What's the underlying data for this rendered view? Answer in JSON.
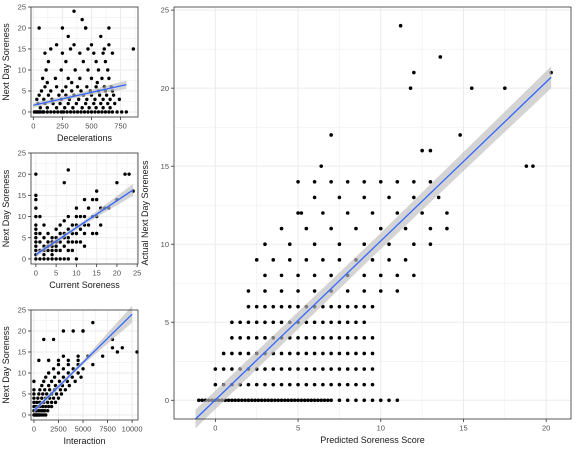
{
  "colors": {
    "points": "#000000",
    "fit_line": "#3366ff",
    "ci_band": "#bdbdbd",
    "grid": "#ebebeb",
    "panel_border": "#333333"
  },
  "chart_data": [
    {
      "type": "scatter",
      "xlabel": "Decelerations",
      "ylabel": "Next Day Soreness",
      "xlim": [
        -20,
        900
      ],
      "ylim": [
        -1.2,
        25
      ],
      "xticks": [
        0,
        250,
        500,
        750
      ],
      "yticks": [
        0,
        5,
        10,
        15,
        20,
        25
      ],
      "grid": true,
      "fit": {
        "method": "linear",
        "x": [
          0,
          800
        ],
        "y": [
          1.6,
          6.5
        ],
        "ci_halfwidth": [
          0.6,
          1.0
        ]
      },
      "x": [
        10,
        20,
        30,
        40,
        50,
        60,
        80,
        90,
        120,
        150,
        180,
        210,
        240,
        260,
        290,
        320,
        350,
        380,
        410,
        440,
        470,
        500,
        530,
        560,
        590,
        620,
        650,
        680,
        720,
        760,
        800,
        60,
        120,
        200,
        270,
        340,
        420,
        480,
        540,
        600,
        660,
        40,
        100,
        170,
        230,
        300,
        370,
        450,
        520,
        580,
        640,
        700,
        30,
        90,
        160,
        240,
        310,
        390,
        460,
        530,
        600,
        660,
        740,
        50,
        130,
        220,
        280,
        350,
        430,
        500,
        570,
        630,
        690,
        70,
        150,
        250,
        330,
        410,
        490,
        560,
        620,
        680,
        100,
        200,
        280,
        380,
        460,
        540,
        610,
        670,
        80,
        190,
        300,
        400,
        500,
        590,
        650,
        110,
        240,
        360,
        470,
        560,
        640,
        130,
        280,
        430,
        540,
        620,
        100,
        250,
        400,
        520,
        600,
        680,
        150,
        320,
        470,
        610,
        200,
        350,
        500,
        650,
        300,
        580,
        450,
        860,
        350,
        420,
        50,
        250,
        450,
        650,
        120,
        330,
        550
      ],
      "y": [
        0,
        0,
        0,
        0,
        0,
        0,
        0,
        0,
        0,
        0,
        0,
        0,
        0,
        0,
        0,
        0,
        0,
        0,
        0,
        0,
        0,
        0,
        0,
        0,
        0,
        0,
        0,
        0,
        0,
        0,
        0,
        1,
        1,
        1,
        1,
        1,
        1,
        1,
        1,
        1,
        1,
        2,
        2,
        2,
        2,
        2,
        2,
        2,
        2,
        2,
        2,
        2,
        3,
        3,
        3,
        3,
        3,
        3,
        3,
        3,
        3,
        3,
        3,
        4,
        4,
        4,
        4,
        4,
        4,
        4,
        4,
        4,
        4,
        5,
        5,
        5,
        5,
        5,
        5,
        5,
        5,
        5,
        6,
        6,
        6,
        6,
        6,
        6,
        6,
        6,
        8,
        8,
        8,
        8,
        8,
        8,
        8,
        10,
        10,
        10,
        10,
        10,
        10,
        12,
        12,
        12,
        12,
        12,
        14,
        14,
        14,
        14,
        14,
        14,
        15,
        15,
        15,
        15,
        16,
        16,
        16,
        16,
        18,
        18,
        20,
        15,
        24,
        22,
        20,
        20,
        20,
        20,
        7,
        7,
        7
      ]
    },
    {
      "type": "scatter",
      "xlabel": "Current Soreness",
      "ylabel": "Next Day Soreness",
      "xlim": [
        -1.2,
        25.2
      ],
      "ylim": [
        -1.2,
        25
      ],
      "xticks": [
        0,
        5,
        10,
        15,
        20,
        25
      ],
      "yticks": [
        0,
        5,
        10,
        15,
        20,
        25
      ],
      "grid": true,
      "fit": {
        "method": "linear",
        "x": [
          0,
          24
        ],
        "y": [
          1.0,
          16.3
        ],
        "ci_halfwidth": [
          0.6,
          1.4
        ]
      },
      "x": [
        0,
        0,
        0,
        0,
        0,
        0,
        0,
        0,
        0,
        0,
        0,
        0,
        0,
        0,
        1,
        1,
        1,
        1,
        1,
        2,
        2,
        2,
        2,
        2,
        2,
        3,
        3,
        3,
        3,
        3,
        4,
        4,
        4,
        4,
        4,
        4,
        5,
        5,
        5,
        5,
        5,
        5,
        6,
        6,
        6,
        6,
        6,
        7,
        7,
        7,
        7,
        7,
        8,
        8,
        8,
        8,
        8,
        8,
        9,
        9,
        9,
        9,
        10,
        10,
        10,
        10,
        10,
        10,
        11,
        11,
        11,
        12,
        12,
        12,
        12,
        12,
        13,
        13,
        14,
        14,
        14,
        15,
        15,
        15,
        15,
        16,
        16,
        17,
        18,
        20,
        20,
        24,
        7,
        8,
        22,
        23
      ],
      "y": [
        0,
        1,
        2,
        3,
        4,
        5,
        6,
        7,
        8,
        10,
        12,
        14,
        15,
        20,
        0,
        2,
        4,
        6,
        10,
        0,
        1,
        2,
        3,
        5,
        8,
        0,
        2,
        3,
        4,
        6,
        0,
        1,
        2,
        3,
        4,
        5,
        0,
        2,
        3,
        4,
        5,
        7,
        0,
        2,
        4,
        6,
        8,
        0,
        3,
        5,
        6,
        9,
        0,
        2,
        4,
        5,
        7,
        10,
        2,
        4,
        6,
        8,
        0,
        4,
        6,
        8,
        10,
        12,
        4,
        7,
        10,
        3,
        6,
        8,
        10,
        14,
        8,
        12,
        6,
        10,
        14,
        6,
        10,
        14,
        16,
        8,
        12,
        12,
        12,
        14,
        18,
        16,
        18,
        21,
        20,
        20
      ]
    },
    {
      "type": "scatter",
      "xlabel": "Interaction",
      "ylabel": "Next Day Soreness",
      "xlim": [
        -300,
        10600
      ],
      "ylim": [
        -1.2,
        25
      ],
      "xticks": [
        0,
        2500,
        5000,
        7500,
        10000
      ],
      "yticks": [
        0,
        5,
        10,
        15,
        20,
        25
      ],
      "grid": true,
      "fit": {
        "method": "linear",
        "x": [
          0,
          10000
        ],
        "y": [
          1.0,
          24.0
        ],
        "ci_halfwidth": [
          0.6,
          2.0
        ]
      },
      "x": [
        0,
        0,
        0,
        0,
        0,
        0,
        0,
        0,
        100,
        200,
        300,
        400,
        500,
        600,
        800,
        1000,
        1200,
        150,
        300,
        500,
        700,
        900,
        1100,
        1400,
        200,
        400,
        600,
        900,
        1200,
        1500,
        1800,
        300,
        600,
        1000,
        1400,
        1800,
        2200,
        400,
        800,
        1200,
        1600,
        2000,
        2500,
        500,
        900,
        1300,
        1800,
        2300,
        2800,
        600,
        1100,
        1600,
        2100,
        2700,
        3200,
        800,
        1500,
        2200,
        2900,
        3600,
        1000,
        1800,
        2600,
        3400,
        4200,
        1200,
        2100,
        3000,
        3900,
        4800,
        1500,
        2500,
        3500,
        4500,
        2000,
        3000,
        4000,
        5000,
        2500,
        3500,
        4500,
        6000,
        3000,
        4500,
        5500,
        7000,
        8000,
        9000,
        1000,
        2000,
        3000,
        4000,
        5000,
        8500,
        10500,
        6000,
        8000,
        500,
        1500,
        2500,
        3500,
        4500,
        5000
      ],
      "y": [
        0,
        1,
        2,
        3,
        4,
        5,
        6,
        8,
        0,
        0,
        0,
        0,
        0,
        0,
        0,
        0,
        0,
        1,
        1,
        1,
        1,
        1,
        1,
        1,
        2,
        2,
        2,
        2,
        2,
        2,
        2,
        3,
        3,
        3,
        3,
        3,
        3,
        4,
        4,
        4,
        4,
        4,
        4,
        5,
        5,
        5,
        5,
        5,
        5,
        6,
        6,
        6,
        6,
        6,
        6,
        7,
        7,
        7,
        7,
        7,
        8,
        8,
        8,
        8,
        8,
        9,
        9,
        9,
        9,
        9,
        10,
        10,
        10,
        10,
        11,
        11,
        11,
        11,
        12,
        12,
        12,
        12,
        14,
        14,
        14,
        14,
        16,
        16,
        18,
        18,
        20,
        20,
        20,
        15,
        15,
        22,
        18,
        13,
        13,
        13,
        13,
        13,
        20
      ]
    },
    {
      "type": "scatter",
      "xlabel": "Predicted Soreness Score",
      "ylabel": "Actual Next Day Soreness",
      "xlim": [
        -2.5,
        21.5
      ],
      "ylim": [
        -1.2,
        25.2
      ],
      "xticks": [
        0,
        5,
        10,
        15,
        20
      ],
      "yticks": [
        0,
        5,
        10,
        15,
        20,
        25
      ],
      "grid": true,
      "fit": {
        "method": "linear",
        "x": [
          -1.2,
          20.3
        ],
        "y": [
          -1.2,
          20.7
        ],
        "ci_halfwidth": [
          0.6,
          0.7
        ]
      },
      "x": [
        -1.0,
        -0.8,
        -0.6,
        -0.4,
        -0.2,
        0.0,
        0.2,
        0.4,
        0.6,
        0.8,
        1.0,
        1.2,
        1.4,
        1.6,
        1.8,
        2.0,
        2.2,
        2.4,
        2.6,
        2.8,
        3.0,
        3.2,
        3.4,
        3.6,
        3.8,
        4.0,
        4.2,
        4.4,
        4.6,
        4.8,
        5.0,
        5.2,
        5.4,
        5.6,
        5.8,
        6.0,
        6.2,
        6.4,
        6.6,
        6.8,
        7.0,
        7.5,
        8.0,
        8.5,
        9.0,
        9.5,
        10.0,
        10.5,
        11.0,
        0.0,
        0.5,
        1.0,
        1.5,
        2.0,
        2.5,
        3.0,
        3.5,
        4.0,
        4.5,
        5.0,
        5.5,
        6.0,
        6.5,
        7.0,
        7.5,
        8.0,
        8.5,
        9.0,
        9.5,
        0.0,
        0.5,
        1.0,
        1.5,
        2.0,
        2.5,
        3.0,
        3.5,
        4.0,
        4.5,
        5.0,
        5.5,
        6.0,
        6.5,
        7.0,
        7.5,
        8.0,
        8.5,
        9.0,
        9.5,
        0.5,
        1.0,
        1.5,
        2.0,
        2.5,
        3.0,
        3.5,
        4.0,
        4.5,
        5.0,
        5.5,
        6.0,
        6.5,
        7.0,
        7.5,
        8.0,
        8.5,
        9.0,
        9.5,
        1.0,
        1.5,
        2.0,
        2.5,
        3.0,
        3.5,
        4.0,
        4.5,
        5.0,
        5.5,
        6.0,
        6.5,
        7.0,
        7.5,
        8.0,
        8.5,
        9.0,
        9.5,
        1.0,
        1.5,
        2.0,
        2.5,
        3.0,
        3.5,
        4.0,
        4.5,
        5.0,
        5.5,
        6.0,
        6.5,
        7.0,
        7.5,
        8.0,
        8.5,
        9.0,
        2.0,
        2.5,
        3.0,
        3.5,
        4.0,
        4.5,
        5.0,
        5.5,
        6.0,
        6.5,
        7.0,
        7.5,
        8.0,
        8.5,
        9.0,
        9.5,
        2.0,
        3.0,
        4.0,
        5.0,
        6.0,
        7.0,
        8.0,
        9.0,
        10.0,
        11.0,
        3.0,
        4.0,
        5.0,
        6.0,
        7.0,
        8.0,
        9.0,
        10.0,
        11.0,
        12.0,
        2.5,
        3.5,
        4.5,
        5.5,
        6.5,
        7.5,
        8.5,
        9.5,
        10.5,
        11.5,
        3.0,
        4.5,
        6.0,
        7.5,
        9.0,
        10.5,
        12.0,
        13.0,
        4.0,
        5.5,
        7.0,
        8.5,
        10.0,
        11.5,
        13.0,
        14.0,
        5.0,
        6.5,
        8.0,
        9.5,
        11.0,
        12.5,
        14.0,
        6.0,
        7.5,
        9.0,
        10.5,
        12.0,
        13.5,
        5.0,
        6.0,
        7.0,
        8.0,
        9.0,
        10.0,
        11.0,
        12.0,
        13.0,
        11.2,
        13.6,
        12.0,
        17.5,
        19.2,
        15.5,
        18.8,
        20.3,
        14.8,
        11.8,
        12.5,
        13.0,
        7.0,
        6.4,
        5.2
      ],
      "y": [
        0,
        0,
        0,
        0,
        0,
        0,
        0,
        0,
        0,
        0,
        0,
        0,
        0,
        0,
        0,
        0,
        0,
        0,
        0,
        0,
        0,
        0,
        0,
        0,
        0,
        0,
        0,
        0,
        0,
        0,
        0,
        0,
        0,
        0,
        0,
        0,
        0,
        0,
        0,
        0,
        0,
        0,
        0,
        0,
        0,
        0,
        0,
        0,
        0,
        1,
        1,
        1,
        1,
        1,
        1,
        1,
        1,
        1,
        1,
        1,
        1,
        1,
        1,
        1,
        1,
        1,
        1,
        1,
        1,
        2,
        2,
        2,
        2,
        2,
        2,
        2,
        2,
        2,
        2,
        2,
        2,
        2,
        2,
        2,
        2,
        2,
        2,
        2,
        2,
        3,
        3,
        3,
        3,
        3,
        3,
        3,
        3,
        3,
        3,
        3,
        3,
        3,
        3,
        3,
        3,
        3,
        3,
        3,
        4,
        4,
        4,
        4,
        4,
        4,
        4,
        4,
        4,
        4,
        4,
        4,
        4,
        4,
        4,
        4,
        4,
        4,
        5,
        5,
        5,
        5,
        5,
        5,
        5,
        5,
        5,
        5,
        5,
        5,
        5,
        5,
        5,
        5,
        5,
        6,
        6,
        6,
        6,
        6,
        6,
        6,
        6,
        6,
        6,
        6,
        6,
        6,
        6,
        6,
        6,
        7,
        7,
        7,
        7,
        7,
        7,
        7,
        7,
        7,
        7,
        8,
        8,
        8,
        8,
        8,
        8,
        8,
        8,
        8,
        8,
        9,
        9,
        9,
        9,
        9,
        9,
        9,
        9,
        9,
        9,
        10,
        10,
        10,
        10,
        10,
        10,
        10,
        10,
        11,
        11,
        11,
        11,
        11,
        11,
        11,
        11,
        12,
        12,
        12,
        12,
        12,
        12,
        12,
        13,
        13,
        13,
        13,
        13,
        13,
        14,
        14,
        14,
        14,
        14,
        14,
        14,
        14,
        14,
        24,
        22,
        21,
        20,
        15,
        20,
        15,
        21,
        17,
        20,
        16,
        16,
        17,
        15,
        12
      ]
    }
  ]
}
